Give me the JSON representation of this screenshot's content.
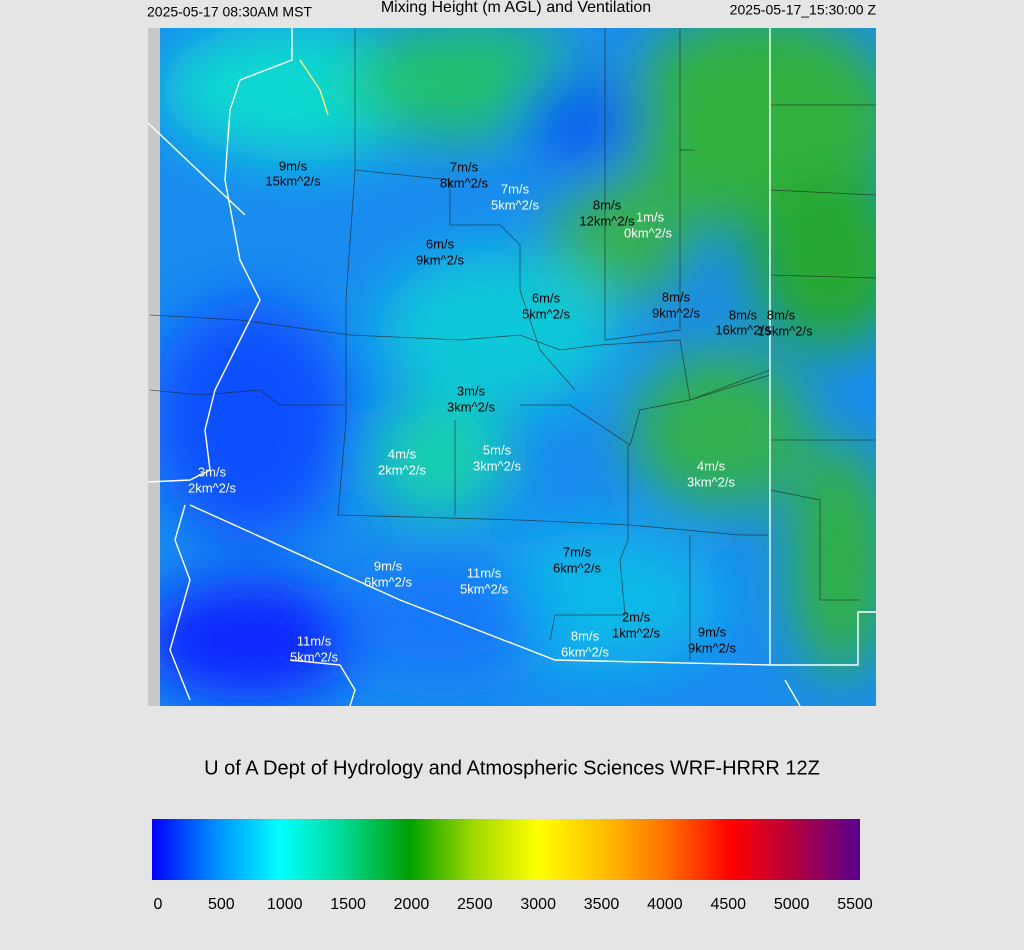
{
  "header": {
    "left": "2025-05-17 08:30AM MST",
    "title": "Mixing Height (m AGL) and Ventilation",
    "right": "2025-05-17_15:30:00 Z"
  },
  "labels": [
    {
      "speed": "9m/s",
      "ventilation": "15km^2/s"
    },
    {
      "speed": "7m/s",
      "ventilation": "8km^2/s"
    },
    {
      "speed": "7m/s",
      "ventilation": "5km^2/s"
    },
    {
      "speed": "8m/s",
      "ventilation": "12km^2/s"
    },
    {
      "speed": "1m/s",
      "ventilation": "0km^2/s"
    },
    {
      "speed": "6m/s",
      "ventilation": "9km^2/s"
    },
    {
      "speed": "6m/s",
      "ventilation": "5km^2/s"
    },
    {
      "speed": "8m/s",
      "ventilation": "9km^2/s"
    },
    {
      "speed": "8m/s",
      "ventilation": "16km^2/s"
    },
    {
      "speed": "8m/s",
      "ventilation": "15km^2/s"
    },
    {
      "speed": "3m/s",
      "ventilation": "3km^2/s"
    },
    {
      "speed": "4m/s",
      "ventilation": "2km^2/s"
    },
    {
      "speed": "5m/s",
      "ventilation": "3km^2/s"
    },
    {
      "speed": "3m/s",
      "ventilation": "2km^2/s"
    },
    {
      "speed": "4m/s",
      "ventilation": "3km^2/s"
    },
    {
      "speed": "7m/s",
      "ventilation": "6km^2/s"
    },
    {
      "speed": "9m/s",
      "ventilation": "6km^2/s"
    },
    {
      "speed": "11m/s",
      "ventilation": "5km^2/s"
    },
    {
      "speed": "2m/s",
      "ventilation": "1km^2/s"
    },
    {
      "speed": "8m/s",
      "ventilation": "6km^2/s"
    },
    {
      "speed": "9m/s",
      "ventilation": "9km^2/s"
    },
    {
      "speed": "11m/s",
      "ventilation": "5km^2/s"
    }
  ],
  "footer": "U of A Dept of Hydrology and Atmospheric Sciences WRF-HRRR 12Z",
  "colorbar": {
    "ticks": [
      0,
      500,
      1000,
      1500,
      2000,
      2500,
      3000,
      3500,
      4000,
      4500,
      5000,
      5500
    ],
    "colors": [
      "#0000ff",
      "#0090ff",
      "#00ffff",
      "#00d890",
      "#00a000",
      "#a0d800",
      "#ffff00",
      "#ffc000",
      "#ff7000",
      "#ff0000",
      "#b00040",
      "#5a0090"
    ]
  }
}
